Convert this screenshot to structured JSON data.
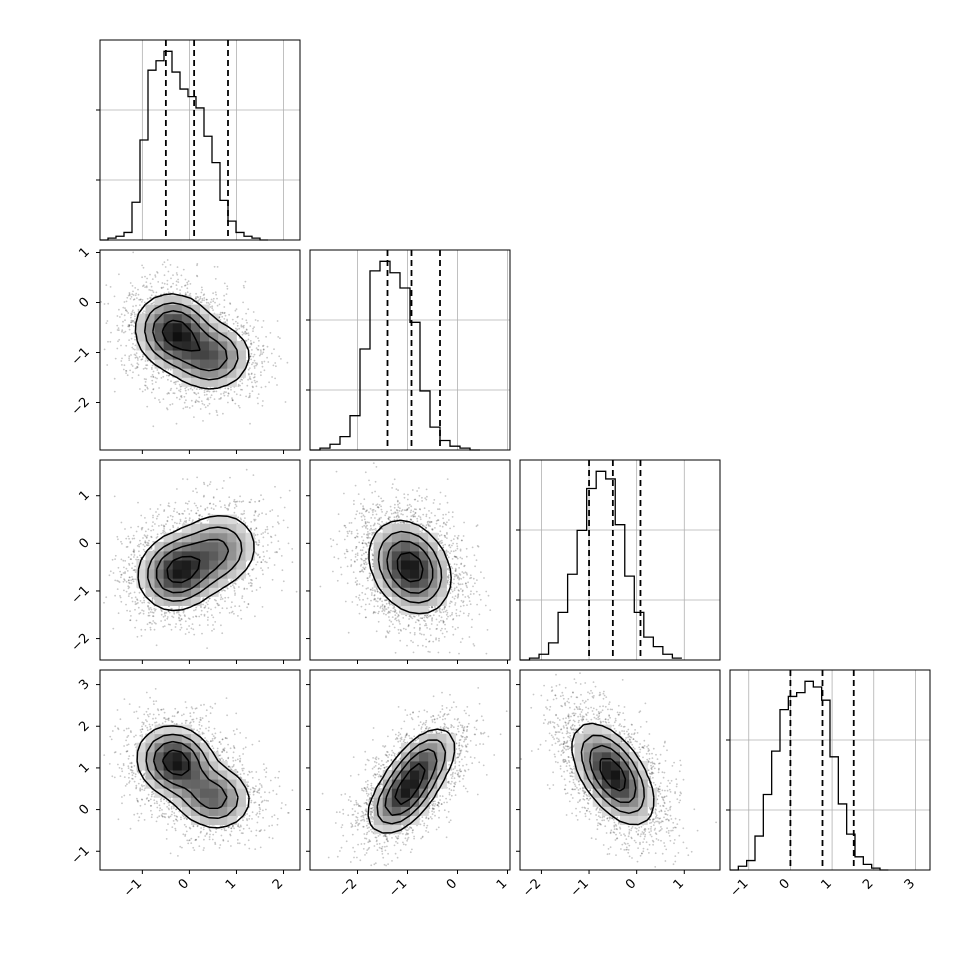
{
  "chart_data": {
    "type": "corner",
    "dimensions": 4,
    "grid": true,
    "axes_limits": [
      [
        -1.9,
        2.35
      ],
      [
        -2.95,
        1.05
      ],
      [
        -2.45,
        1.75
      ],
      [
        -1.45,
        3.35
      ]
    ],
    "ticks": [
      [
        -1,
        0,
        1,
        2
      ],
      [
        -2,
        -1,
        0,
        1
      ],
      [
        -2,
        -1,
        0,
        1
      ],
      [
        -1,
        0,
        1,
        2,
        3
      ]
    ],
    "tick_labels": [
      [
        "−1",
        "0",
        "1",
        "2"
      ],
      [
        "−2",
        "−1",
        "0",
        "1"
      ],
      [
        "−2",
        "−1",
        "0",
        "1"
      ],
      [
        "−1",
        "0",
        "1",
        "2",
        "3"
      ]
    ],
    "quantiles": [
      [
        -0.5,
        0.1,
        0.82
      ],
      [
        -1.4,
        -0.92,
        -0.35
      ],
      [
        -1.0,
        -0.5,
        0.08
      ],
      [
        0.0,
        0.77,
        1.52
      ]
    ],
    "marginals": [
      {
        "bin_start": -1.9,
        "bin_width": 0.17,
        "counts": [
          0,
          1,
          2,
          4,
          20,
          53,
          90,
          95,
          100,
          89,
          80,
          76,
          70,
          55,
          41,
          21,
          10,
          4,
          2,
          1,
          0
        ]
      },
      {
        "bin_start": -2.95,
        "bin_width": 0.2,
        "counts": [
          0,
          1,
          3,
          7,
          18,
          53,
          94,
          99,
          93,
          85,
          67,
          31,
          12,
          5,
          2,
          1,
          0
        ]
      },
      {
        "bin_start": -2.45,
        "bin_width": 0.2,
        "counts": [
          0,
          1,
          3,
          9,
          25,
          45,
          68,
          90,
          99,
          95,
          71,
          44,
          25,
          12,
          7,
          3,
          1
        ]
      },
      {
        "bin_start": -1.45,
        "bin_width": 0.2,
        "counts": [
          0,
          2,
          5,
          18,
          40,
          63,
          85,
          92,
          94,
          100,
          97,
          90,
          60,
          35,
          19,
          7,
          3,
          1,
          0
        ]
      }
    ],
    "pairs": [
      {
        "x_dim": 0,
        "y_dim": 1,
        "modes": [
          {
            "mx": -0.3,
            "my": -0.6,
            "sx": 0.42,
            "sy": 0.38,
            "rho": -0.1,
            "w": 0.6
          },
          {
            "mx": 0.5,
            "my": -1.1,
            "sx": 0.42,
            "sy": 0.34,
            "rho": 0.05,
            "w": 0.4
          }
        ]
      },
      {
        "x_dim": 0,
        "y_dim": 2,
        "modes": [
          {
            "mx": -0.25,
            "my": -0.6,
            "sx": 0.42,
            "sy": 0.4,
            "rho": 0.1,
            "w": 0.62
          },
          {
            "mx": 0.6,
            "my": -0.15,
            "sx": 0.45,
            "sy": 0.42,
            "rho": 0.1,
            "w": 0.38
          }
        ]
      },
      {
        "x_dim": 1,
        "y_dim": 2,
        "modes": [
          {
            "mx": -0.95,
            "my": -0.5,
            "sx": 0.4,
            "sy": 0.48,
            "rho": -0.25,
            "w": 1.0
          }
        ]
      },
      {
        "x_dim": 0,
        "y_dim": 3,
        "modes": [
          {
            "mx": -0.3,
            "my": 1.15,
            "sx": 0.4,
            "sy": 0.42,
            "rho": -0.1,
            "w": 0.6
          },
          {
            "mx": 0.5,
            "my": 0.3,
            "sx": 0.42,
            "sy": 0.4,
            "rho": -0.1,
            "w": 0.4
          }
        ]
      },
      {
        "x_dim": 1,
        "y_dim": 3,
        "modes": [
          {
            "mx": -1.1,
            "my": 0.3,
            "sx": 0.35,
            "sy": 0.45,
            "rho": 0.5,
            "w": 0.55
          },
          {
            "mx": -0.7,
            "my": 1.1,
            "sx": 0.35,
            "sy": 0.45,
            "rho": 0.5,
            "w": 0.45
          }
        ]
      },
      {
        "x_dim": 2,
        "y_dim": 3,
        "modes": [
          {
            "mx": -0.5,
            "my": 0.85,
            "sx": 0.42,
            "sy": 0.6,
            "rho": -0.55,
            "w": 1.0
          }
        ]
      }
    ]
  }
}
